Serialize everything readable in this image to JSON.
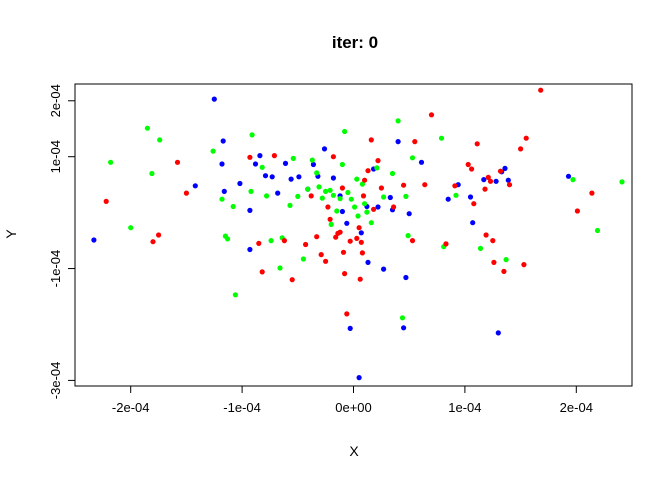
{
  "chart_data": {
    "type": "scatter",
    "title": "iter: 0",
    "xlabel": "X",
    "ylabel": "Y",
    "xlim": [
      -0.00025,
      0.00025
    ],
    "ylim": [
      -0.00031,
      0.00023
    ],
    "xticks": [
      -0.0002,
      -0.0001,
      0,
      0.0001,
      0.0002
    ],
    "xtick_labels": [
      "-2e-04",
      "-1e-04",
      "0e+00",
      "1e-04",
      "2e-04"
    ],
    "yticks": [
      -0.0003,
      -0.0001,
      0.0001,
      0.0002
    ],
    "ytick_labels": [
      "-3e-04",
      "-1e-04",
      "1e-04",
      "2e-04"
    ],
    "grid": false,
    "legend": "none",
    "series": [
      {
        "color": "#0000ff",
        "points": [
          [
            -0.000233,
            -4.9e-05
          ],
          [
            -0.000125,
            0.000203
          ],
          [
            -0.000117,
            0.000128
          ],
          [
            -0.000118,
            8.7e-05
          ],
          [
            -0.000116,
            3.8e-05
          ],
          [
            -0.000142,
            4.8e-05
          ],
          [
            -0.000102,
            5.2e-05
          ],
          [
            -9.3e-05,
            4e-06
          ],
          [
            -9.3e-05,
            -6.6e-05
          ],
          [
            -8.8e-05,
            8.7e-05
          ],
          [
            -8.4e-05,
            0.000102
          ],
          [
            -7.9e-05,
            6.6e-05
          ],
          [
            -7.3e-05,
            6.4e-05
          ],
          [
            -6.8e-05,
            3.5e-05
          ],
          [
            -6.1e-05,
            8.8e-05
          ],
          [
            -5.6e-05,
            6e-05
          ],
          [
            -4.9e-05,
            6.4e-05
          ],
          [
            -4.1e-05,
            4.2e-05
          ],
          [
            -3.6e-05,
            8.6e-05
          ],
          [
            -3.2e-05,
            6.5e-05
          ],
          [
            -2.6e-05,
            0.000114
          ],
          [
            -1.8e-05,
            6.2e-05
          ],
          [
            -1.2e-05,
            3e-05
          ],
          [
            -1e-05,
            2e-06
          ],
          [
            -6e-06,
            -1.9e-05
          ],
          [
            -3e-06,
            -0.000207
          ],
          [
            5e-06,
            -0.000295
          ],
          [
            7e-06,
            -3.6e-05
          ],
          [
            1.2e-05,
            1.1e-05
          ],
          [
            1.3e-05,
            -8.9e-05
          ],
          [
            1.8e-05,
            7.8e-05
          ],
          [
            2.2e-05,
            1e-05
          ],
          [
            2.7e-05,
            -0.000101
          ],
          [
            3.3e-05,
            2.7e-05
          ],
          [
            3.5e-05,
            5e-06
          ],
          [
            4e-05,
            0.000127
          ],
          [
            4.5e-05,
            -0.000206
          ],
          [
            4.7e-05,
            -0.000116
          ],
          [
            5e-05,
            -2e-06
          ],
          [
            6.1e-05,
            9e-05
          ],
          [
            8.5e-05,
            2.4e-05
          ],
          [
            9.4e-05,
            5e-05
          ],
          [
            0.000105,
            2.8e-05
          ],
          [
            0.000107,
            -1.8e-05
          ],
          [
            0.000117,
            5.9e-05
          ],
          [
            0.000128,
            5.6e-05
          ],
          [
            0.00013,
            -0.000215
          ],
          [
            0.000133,
            7.3e-05
          ],
          [
            0.000136,
            7.9e-05
          ],
          [
            0.000139,
            5.8e-05
          ],
          [
            0.000193,
            6.5e-05
          ]
        ]
      },
      {
        "color": "#00ff00",
        "points": [
          [
            -0.000218,
            9e-05
          ],
          [
            -0.0002,
            -2.7e-05
          ],
          [
            -0.000185,
            0.000151
          ],
          [
            -0.000181,
            7e-05
          ],
          [
            -0.000174,
            0.00013
          ],
          [
            -0.000126,
            0.00011
          ],
          [
            -0.000118,
            2.4e-05
          ],
          [
            -0.000115,
            -4.2e-05
          ],
          [
            -0.000113,
            -4.7e-05
          ],
          [
            -0.000108,
            1.1e-05
          ],
          [
            -0.000106,
            -0.000147
          ],
          [
            -9.2e-05,
            3.8e-05
          ],
          [
            -9.1e-05,
            0.000139
          ],
          [
            -8.2e-05,
            8.1e-05
          ],
          [
            -7.8e-05,
            3e-05
          ],
          [
            -7.4e-05,
            -5e-05
          ],
          [
            -6.6e-05,
            -9.9e-05
          ],
          [
            -6.4e-05,
            -4.5e-05
          ],
          [
            -5.7e-05,
            1.3e-05
          ],
          [
            -5.4e-05,
            9.7e-05
          ],
          [
            -5e-05,
            2.9e-05
          ],
          [
            -4.5e-05,
            -8.3e-05
          ],
          [
            -4.1e-05,
            4.2e-05
          ],
          [
            -3.7e-05,
            9.4e-05
          ],
          [
            -3.3e-05,
            7.1e-05
          ],
          [
            -3.1e-05,
            4.6e-05
          ],
          [
            -2.8e-05,
            2.6e-05
          ],
          [
            -2.5e-05,
            3.8e-05
          ],
          [
            -2.1e-05,
            4e-05
          ],
          [
            -1.8e-05,
            3.1e-05
          ],
          [
            -1.5e-05,
            3e-06
          ],
          [
            -1.2e-05,
            2.5e-05
          ],
          [
            -1e-05,
            8.6e-05
          ],
          [
            -8e-06,
            0.000145
          ],
          [
            -5e-06,
            3.6e-05
          ],
          [
            -2e-06,
            2.4e-05
          ],
          [
            1e-06,
            1e-05
          ],
          [
            4e-06,
            -6e-06
          ],
          [
            8e-06,
            5.1e-05
          ],
          [
            1e-05,
            1.6e-05
          ],
          [
            1.2e-05,
            1e-06
          ],
          [
            1.6e-05,
            -1.8e-05
          ],
          [
            2.1e-05,
            8e-05
          ],
          [
            2.7e-05,
            2.8e-05
          ],
          [
            3.5e-05,
            7e-05
          ],
          [
            4e-05,
            0.000164
          ],
          [
            4.4e-05,
            -0.000188
          ],
          [
            4.9e-05,
            -4.1e-05
          ],
          [
            5.3e-05,
            9.8e-05
          ],
          [
            7.9e-05,
            0.000133
          ],
          [
            8.1e-05,
            -6.1e-05
          ],
          [
            9.2e-05,
            3.1e-05
          ],
          [
            0.000114,
            -6.4e-05
          ],
          [
            0.000137,
            -8.4e-05
          ],
          [
            0.000197,
            5.9e-05
          ],
          [
            0.000219,
            -3.2e-05
          ],
          [
            0.000241,
            5.5e-05
          ],
          [
            4.7e-05,
            2.9e-05
          ],
          [
            -2e-05,
            -2.1e-05
          ],
          [
            3e-06,
            6e-05
          ]
        ]
      },
      {
        "color": "#ff0000",
        "points": [
          [
            -0.000222,
            2e-05
          ],
          [
            -0.00018,
            -5.2e-05
          ],
          [
            -0.000175,
            -4e-05
          ],
          [
            -0.000158,
            9e-05
          ],
          [
            -0.00015,
            3.5e-05
          ],
          [
            -9.3e-05,
            9.9e-05
          ],
          [
            -8.5e-05,
            -5.5e-05
          ],
          [
            -8.2e-05,
            -0.000106
          ],
          [
            -7.1e-05,
            0.000102
          ],
          [
            -6.2e-05,
            -5e-05
          ],
          [
            -5.5e-05,
            -0.00012
          ],
          [
            -4.3e-05,
            -5.7e-05
          ],
          [
            -3.8e-05,
            3e-05
          ],
          [
            -3.3e-05,
            -4.3e-05
          ],
          [
            -2.9e-05,
            -7.5e-05
          ],
          [
            -2.5e-05,
            -8.7e-05
          ],
          [
            -2.3e-05,
            1e-05
          ],
          [
            -2.1e-05,
            -1.2e-05
          ],
          [
            -1.8e-05,
            0.0001
          ],
          [
            -1.6e-05,
            -4.4e-05
          ],
          [
            -1.4e-05,
            -3.7e-05
          ],
          [
            -1.2e-05,
            -3.5e-05
          ],
          [
            -1e-05,
            4.4e-05
          ],
          [
            -8e-06,
            -0.000109
          ],
          [
            -6e-06,
            -0.000181
          ],
          [
            -3e-06,
            -5.1e-05
          ],
          [
            3e-06,
            -4.6e-05
          ],
          [
            5e-06,
            -2.7e-05
          ],
          [
            6e-06,
            -0.000119
          ],
          [
            8e-06,
            -7.2e-05
          ],
          [
            1e-05,
            5.8e-05
          ],
          [
            1.3e-05,
            7.5e-05
          ],
          [
            1.6e-05,
            0.00013
          ],
          [
            1.8e-05,
            6e-06
          ],
          [
            2.2e-05,
            9.3e-05
          ],
          [
            2.5e-05,
            4.4e-05
          ],
          [
            3.6e-05,
            1e-05
          ],
          [
            4.5e-05,
            4.9e-05
          ],
          [
            5.3e-05,
            -5e-05
          ],
          [
            5.5e-05,
            0.000127
          ],
          [
            6.4e-05,
            5e-05
          ],
          [
            7e-05,
            0.000175
          ],
          [
            8.3e-05,
            -5.6e-05
          ],
          [
            9.1e-05,
            4.8e-05
          ],
          [
            0.000103,
            8.6e-05
          ],
          [
            0.000106,
            7.8e-05
          ],
          [
            0.000108,
            1.6e-05
          ],
          [
            0.000111,
            0.000123
          ],
          [
            0.000118,
            4.2e-05
          ],
          [
            0.000121,
            6.3e-05
          ],
          [
            0.000123,
            5.6e-05
          ],
          [
            0.000125,
            -5e-05
          ],
          [
            0.000132,
            7.4e-05
          ],
          [
            0.000135,
            -0.000105
          ],
          [
            0.00014,
            5e-05
          ],
          [
            0.00015,
            0.000114
          ],
          [
            0.000153,
            -9.3e-05
          ],
          [
            0.000155,
            0.000133
          ],
          [
            0.000168,
            0.000219
          ],
          [
            0.000201,
            3e-06
          ],
          [
            0.000214,
            3.5e-05
          ],
          [
            0.000126,
            -8.9e-05
          ],
          [
            0.000119,
            -4e-05
          ],
          [
            -9e-06,
            -7.1e-05
          ],
          [
            7e-06,
            -5.3e-05
          ],
          [
            9e-06,
            3e-05
          ]
        ]
      }
    ]
  }
}
